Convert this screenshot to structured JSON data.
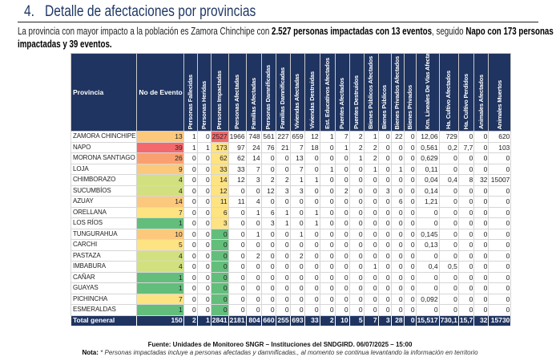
{
  "section": {
    "number": "4.",
    "title": "Detalle de afectaciones por provincias"
  },
  "intro": {
    "part1": "La provincia con mayor impacto a la población es Zamora Chinchipe con ",
    "bold1": "2.527 personas impactadas con 13 eventos",
    "part2": ", seguido ",
    "bold2": "Napo con 173 personas impactadas y 39 eventos."
  },
  "colors": {
    "header_bg": "#1f3460",
    "red": "#f4696b",
    "orange": "#f9a070",
    "light_orange": "#fcc97c",
    "yellow": "#fee383",
    "yellow_green": "#d3e07f",
    "green": "#63be7b"
  },
  "table": {
    "columns": [
      "Provincia",
      "No de Evento",
      "Personas Fallecidas",
      "Personas Heridas",
      "Personas Impactadas",
      "Personas Afectadas",
      "Familias Afectadas",
      "Personas Damnificadas",
      "Familias Damnificadas",
      "Viviendas Afectadas",
      "Viviendas Destruidas",
      "Est. Educativos Afectados",
      "Puentes Afectados",
      "Puentes Destruidos",
      "Bienes Públicos Afectados",
      "Bienes Públicos",
      "Bienes Privados Afectados",
      "Bienes Privados",
      "Km. Lineales De Vías Afectadas",
      "Ha. Cultivo Afectados",
      "Ha. Cultivo Perdidos",
      "Animales Afectados",
      "Animales Muertos"
    ],
    "rows": [
      {
        "provincia": "ZAMORA CHINCHIPE",
        "eventos": "13",
        "ev_color": "light_orange",
        "imp_color": "red",
        "values": [
          "1",
          "0",
          "2527",
          "1966",
          "748",
          "561",
          "227",
          "659",
          "12",
          "1",
          "7",
          "2",
          "1",
          "0",
          "22",
          "0",
          "12,06",
          "729",
          "0",
          "0",
          "620"
        ]
      },
      {
        "provincia": "NAPO",
        "eventos": "39",
        "ev_color": "red",
        "imp_color": "yellow",
        "values": [
          "1",
          "1",
          "173",
          "97",
          "24",
          "76",
          "21",
          "7",
          "18",
          "0",
          "1",
          "2",
          "2",
          "0",
          "0",
          "0",
          "0,561",
          "0,2",
          "7,7",
          "0",
          "103"
        ]
      },
      {
        "provincia": "MORONA SANTIAGO",
        "eventos": "26",
        "ev_color": "orange",
        "imp_color": "yellow",
        "values": [
          "0",
          "0",
          "62",
          "62",
          "14",
          "0",
          "0",
          "13",
          "0",
          "0",
          "0",
          "1",
          "2",
          "0",
          "0",
          "0",
          "0,629",
          "0",
          "0",
          "0",
          "0"
        ]
      },
      {
        "provincia": "LOJA",
        "eventos": "9",
        "ev_color": "light_orange",
        "imp_color": "yellow",
        "values": [
          "0",
          "0",
          "33",
          "33",
          "7",
          "0",
          "0",
          "7",
          "0",
          "1",
          "0",
          "0",
          "1",
          "0",
          "1",
          "0",
          "0,11",
          "0",
          "0",
          "0",
          "0"
        ]
      },
      {
        "provincia": "CHIMBORAZO",
        "eventos": "4",
        "ev_color": "yellow_green",
        "imp_color": "yellow",
        "values": [
          "0",
          "0",
          "14",
          "12",
          "3",
          "2",
          "2",
          "1",
          "1",
          "0",
          "0",
          "0",
          "0",
          "0",
          "0",
          "0",
          "0,04",
          "0,4",
          "8",
          "32",
          "15007"
        ]
      },
      {
        "provincia": "SUCUMBÍOS",
        "eventos": "4",
        "ev_color": "yellow_green",
        "imp_color": "yellow",
        "values": [
          "0",
          "0",
          "12",
          "0",
          "0",
          "12",
          "3",
          "3",
          "0",
          "0",
          "2",
          "0",
          "0",
          "3",
          "0",
          "0",
          "0,14",
          "0",
          "0",
          "0",
          "0"
        ]
      },
      {
        "provincia": "AZUAY",
        "eventos": "14",
        "ev_color": "light_orange",
        "imp_color": "yellow",
        "values": [
          "0",
          "0",
          "11",
          "11",
          "4",
          "0",
          "0",
          "0",
          "0",
          "0",
          "0",
          "0",
          "0",
          "0",
          "6",
          "0",
          "1,21",
          "0",
          "0",
          "0",
          "0"
        ]
      },
      {
        "provincia": "ORELLANA",
        "eventos": "7",
        "ev_color": "yellow",
        "imp_color": "yellow",
        "values": [
          "0",
          "0",
          "6",
          "0",
          "1",
          "6",
          "1",
          "0",
          "1",
          "0",
          "0",
          "0",
          "0",
          "0",
          "0",
          "0",
          "0",
          "0",
          "0",
          "0",
          "0"
        ]
      },
      {
        "provincia": "LOS RÍOS",
        "eventos": "1",
        "ev_color": "green",
        "imp_color": "yellow",
        "values": [
          "0",
          "0",
          "3",
          "0",
          "0",
          "3",
          "1",
          "0",
          "1",
          "0",
          "0",
          "0",
          "0",
          "0",
          "0",
          "0",
          "0",
          "0",
          "0",
          "0",
          "0"
        ]
      },
      {
        "provincia": "TUNGURAHUA",
        "eventos": "10",
        "ev_color": "light_orange",
        "imp_color": "green",
        "values": [
          "0",
          "0",
          "0",
          "0",
          "1",
          "0",
          "0",
          "1",
          "0",
          "0",
          "0",
          "0",
          "0",
          "0",
          "0",
          "0",
          "0,145",
          "0",
          "0",
          "0",
          "0"
        ]
      },
      {
        "provincia": "CARCHI",
        "eventos": "5",
        "ev_color": "yellow",
        "imp_color": "green",
        "values": [
          "0",
          "0",
          "0",
          "0",
          "0",
          "0",
          "0",
          "0",
          "0",
          "0",
          "0",
          "0",
          "0",
          "0",
          "0",
          "0",
          "0,13",
          "0",
          "0",
          "0",
          "0"
        ]
      },
      {
        "provincia": "PASTAZA",
        "eventos": "4",
        "ev_color": "yellow_green",
        "imp_color": "green",
        "values": [
          "0",
          "0",
          "0",
          "0",
          "2",
          "0",
          "0",
          "2",
          "0",
          "0",
          "0",
          "0",
          "0",
          "0",
          "0",
          "0",
          "0",
          "0",
          "0",
          "0",
          "0"
        ]
      },
      {
        "provincia": "IMBABURA",
        "eventos": "4",
        "ev_color": "yellow_green",
        "imp_color": "green",
        "values": [
          "0",
          "0",
          "0",
          "0",
          "0",
          "0",
          "0",
          "0",
          "0",
          "0",
          "0",
          "0",
          "1",
          "0",
          "0",
          "0",
          "0,4",
          "0,5",
          "0",
          "0",
          "0"
        ]
      },
      {
        "provincia": "CAÑAR",
        "eventos": "1",
        "ev_color": "green",
        "imp_color": "green",
        "values": [
          "0",
          "0",
          "0",
          "0",
          "0",
          "0",
          "0",
          "0",
          "0",
          "0",
          "0",
          "0",
          "0",
          "0",
          "0",
          "0",
          "0",
          "0",
          "0",
          "0",
          "0"
        ]
      },
      {
        "provincia": "GUAYAS",
        "eventos": "1",
        "ev_color": "green",
        "imp_color": "green",
        "values": [
          "0",
          "0",
          "0",
          "0",
          "0",
          "0",
          "0",
          "0",
          "0",
          "0",
          "0",
          "0",
          "0",
          "0",
          "0",
          "0",
          "0",
          "0",
          "0",
          "0",
          "0"
        ]
      },
      {
        "provincia": "PICHINCHA",
        "eventos": "7",
        "ev_color": "yellow",
        "imp_color": "green",
        "values": [
          "0",
          "0",
          "0",
          "0",
          "0",
          "0",
          "0",
          "0",
          "0",
          "0",
          "0",
          "0",
          "0",
          "0",
          "0",
          "0",
          "0,092",
          "0",
          "0",
          "0",
          "0"
        ]
      },
      {
        "provincia": "ESMERALDAS",
        "eventos": "1",
        "ev_color": "green",
        "imp_color": "green",
        "values": [
          "0",
          "0",
          "0",
          "0",
          "0",
          "0",
          "0",
          "0",
          "0",
          "0",
          "0",
          "0",
          "0",
          "0",
          "0",
          "0",
          "0",
          "0",
          "0",
          "0",
          "0"
        ]
      }
    ],
    "total": {
      "label": "Total general",
      "eventos": "150",
      "values": [
        "2",
        "1",
        "2841",
        "2181",
        "804",
        "660",
        "255",
        "693",
        "33",
        "2",
        "10",
        "5",
        "7",
        "3",
        "28",
        "0",
        "15,517",
        "730,1",
        "15,7",
        "32",
        "15730"
      ]
    }
  },
  "footer": {
    "source": "Fuente: Unidades de Monitoreo SNGR – Instituciones del SNDGIRD. 06/07/2025 – 15:00",
    "note_label": "Nota:",
    "note_text": " * Personas impactadas incluye a personas afectadas y damnificadas., al momento se continua levantando la información en territorio"
  }
}
